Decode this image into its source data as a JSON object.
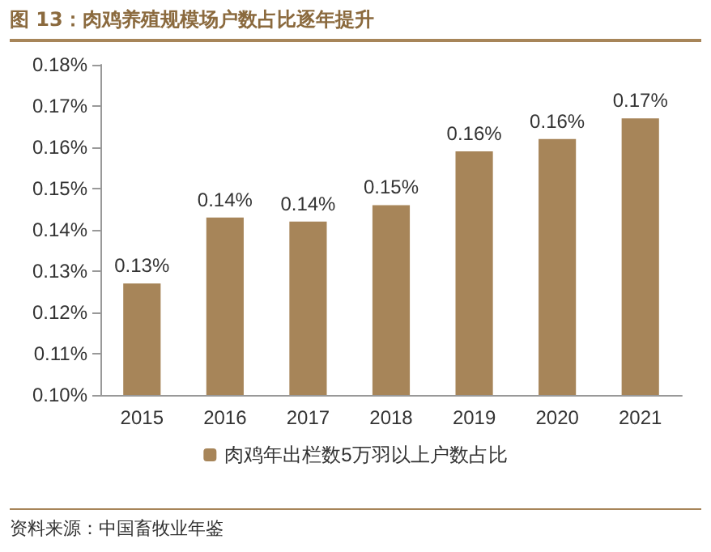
{
  "chart_data": {
    "type": "bar",
    "title": "图 13：肉鸡养殖规模场户数占比逐年提升",
    "categories": [
      "2015",
      "2016",
      "2017",
      "2018",
      "2019",
      "2020",
      "2021"
    ],
    "series": [
      {
        "name": "肉鸡年出栏数5万羽以上户数占比",
        "color": "#a78559",
        "values": [
          0.127,
          0.143,
          0.142,
          0.146,
          0.159,
          0.162,
          0.167
        ],
        "value_labels": [
          "0.13%",
          "0.14%",
          "0.14%",
          "0.15%",
          "0.16%",
          "0.16%",
          "0.17%"
        ]
      }
    ],
    "ylim": [
      0.1,
      0.18
    ],
    "yticks": [
      {
        "value": 0.1,
        "label": "0.10%"
      },
      {
        "value": 0.11,
        "label": "0.11%"
      },
      {
        "value": 0.12,
        "label": "0.12%"
      },
      {
        "value": 0.13,
        "label": "0.13%"
      },
      {
        "value": 0.14,
        "label": "0.14%"
      },
      {
        "value": 0.15,
        "label": "0.15%"
      },
      {
        "value": 0.16,
        "label": "0.16%"
      },
      {
        "value": 0.17,
        "label": "0.17%"
      },
      {
        "value": 0.18,
        "label": "0.18%"
      }
    ],
    "grid": false,
    "legend": "bottom",
    "annotations": [
      "资料来源：中国畜牧业年鉴"
    ]
  }
}
